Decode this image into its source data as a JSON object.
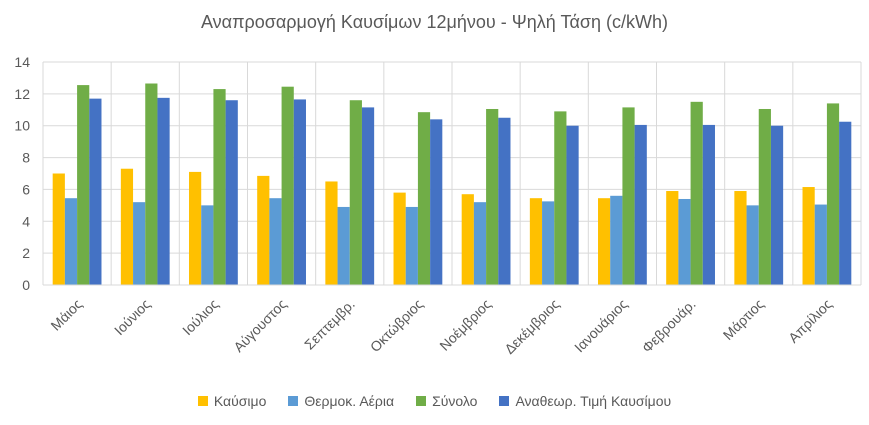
{
  "chart_data": {
    "type": "bar",
    "title": "Αναπροσαρμογή Καυσίμων 12μήνου - Ψηλή Τάση  (c/kWh)",
    "xlabel": "",
    "ylabel": "",
    "ylim": [
      0,
      14
    ],
    "yticks": [
      0,
      2,
      4,
      6,
      8,
      10,
      12,
      14
    ],
    "ytick_labels": [
      "0",
      "2",
      "4",
      "6",
      "8",
      "10",
      "12",
      "14"
    ],
    "grid": true,
    "legend_position": "bottom",
    "categories": [
      "Μάιος",
      "Ιούνιος",
      "Ιούλιος",
      "Αύγουστος",
      "Σεπτεμβρ.",
      "Οκτώβριος",
      "Νοέμβριος",
      "Δεκέμβριος",
      "Ιανουάριος",
      "Φεβρουάρ.",
      "Μάρτιος",
      "Απρίλιος"
    ],
    "series": [
      {
        "name": "Καύσιμο",
        "color": "#FFC000",
        "values": [
          7.0,
          7.3,
          7.1,
          6.85,
          6.5,
          5.8,
          5.7,
          5.45,
          5.45,
          5.9,
          5.9,
          6.15
        ]
      },
      {
        "name": "Θερμοκ. Αέρια",
        "color": "#5B9BD5",
        "values": [
          5.45,
          5.2,
          5.0,
          5.45,
          4.9,
          4.9,
          5.2,
          5.25,
          5.6,
          5.4,
          5.0,
          5.05
        ]
      },
      {
        "name": "Σύνολο",
        "color": "#70AD47",
        "values": [
          12.55,
          12.65,
          12.3,
          12.45,
          11.6,
          10.85,
          11.05,
          10.9,
          11.15,
          11.5,
          11.05,
          11.4
        ]
      },
      {
        "name": "Αναθεωρ. Τιμή Καυσίμου",
        "color": "#4472C4",
        "values": [
          11.7,
          11.75,
          11.6,
          11.65,
          11.15,
          10.4,
          10.5,
          10.0,
          10.05,
          10.05,
          10.0,
          10.25
        ]
      }
    ]
  }
}
